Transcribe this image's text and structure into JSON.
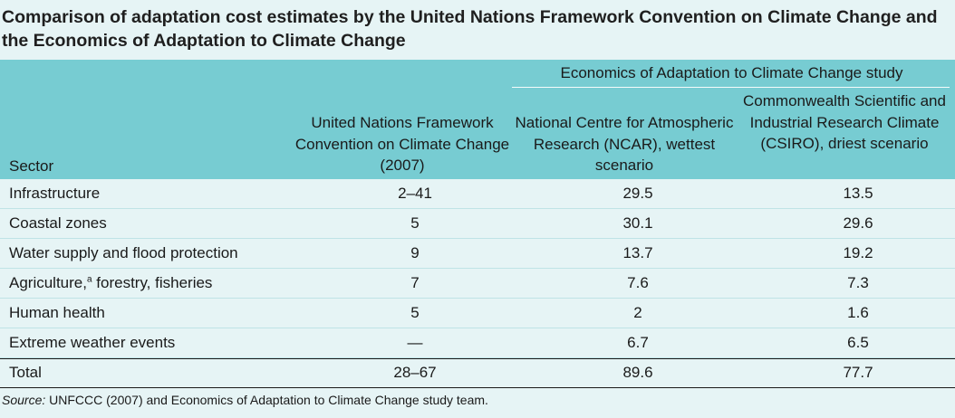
{
  "title": "Comparison of adaptation cost estimates by the United Nations Framework Convention on Climate Change and the Economics of Adaptation to Climate Change",
  "group_header": "Economics of Adaptation to Climate Change study",
  "columns": {
    "sector": "Sector",
    "unfccc": "United Nations Framework Convention on Climate Change (2007)",
    "ncar": "National Centre for Atmospheric Research (NCAR), wettest scenario",
    "csiro": "Commonwealth Scientific and Industrial Research Climate (CSIRO), driest scenario"
  },
  "rows": [
    {
      "sector": "Infrastructure",
      "unfccc": "2–41",
      "ncar": "29.5",
      "csiro": "13.5"
    },
    {
      "sector": "Coastal zones",
      "unfccc": "5",
      "ncar": "30.1",
      "csiro": "29.6"
    },
    {
      "sector": "Water supply and flood protection",
      "unfccc": "9",
      "ncar": "13.7",
      "csiro": "19.2"
    },
    {
      "sector": "Agriculture,",
      "sector_footnote": "a",
      "sector_rest": " forestry, fisheries",
      "unfccc": "7",
      "ncar": "7.6",
      "csiro": "7.3"
    },
    {
      "sector": "Human health",
      "unfccc": "5",
      "ncar": "2",
      "csiro": "1.6"
    },
    {
      "sector": "Extreme weather events",
      "unfccc": "—",
      "ncar": "6.7",
      "csiro": "6.5"
    }
  ],
  "total": {
    "sector": "Total",
    "unfccc": "28–67",
    "ncar": "89.6",
    "csiro": "77.7"
  },
  "source": {
    "label": "Source:",
    "text": " UNFCCC (2007) and Economics of Adaptation to Climate Change study team."
  }
}
